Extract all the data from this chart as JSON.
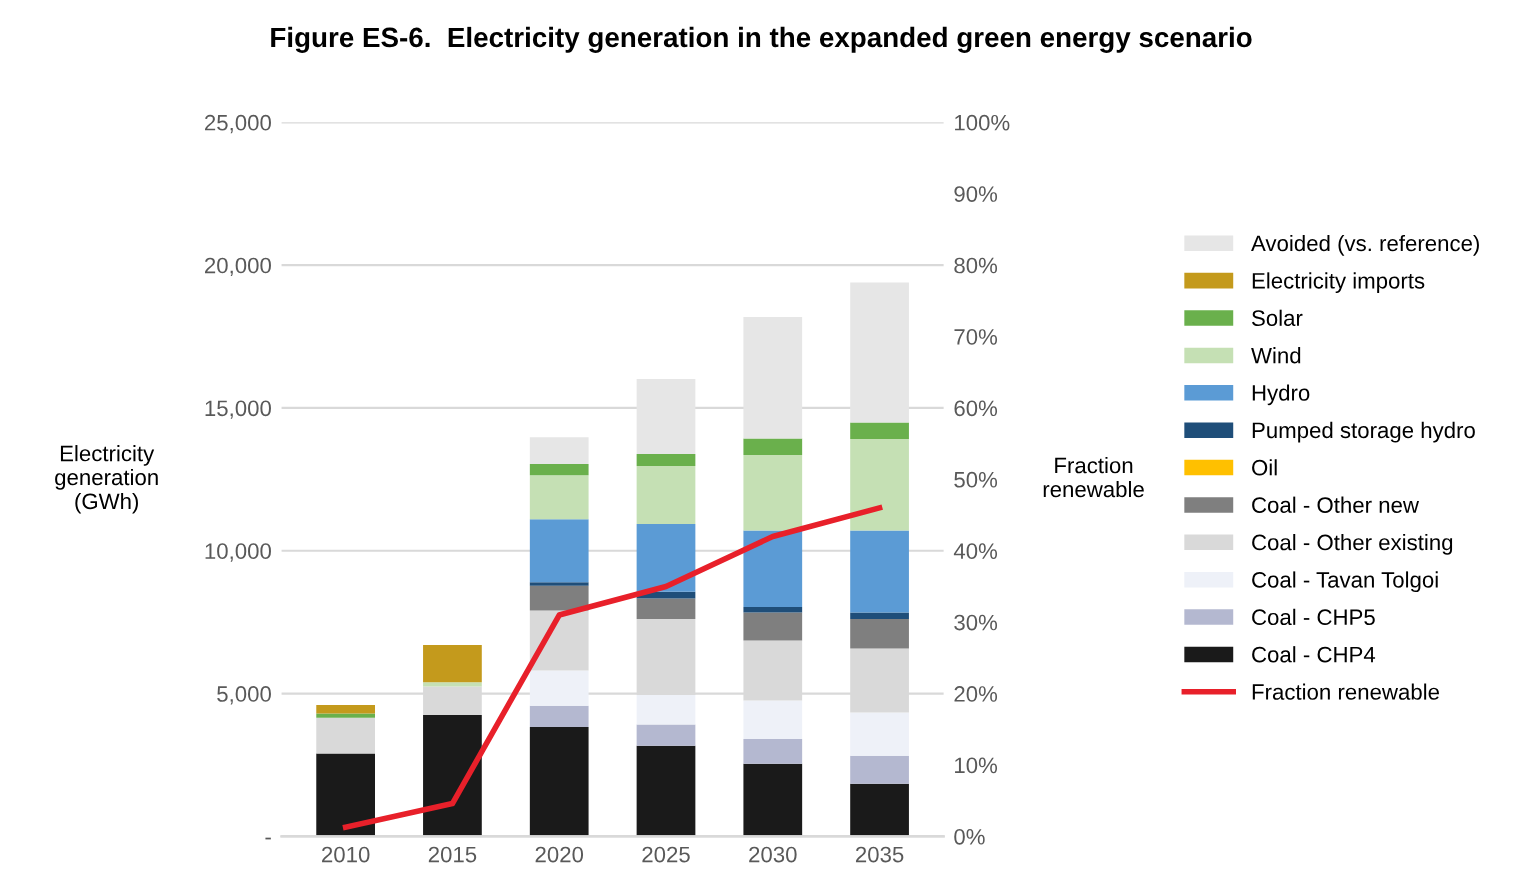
{
  "chart_data": {
    "type": "bar",
    "title": "Figure ES-6.  Electricity generation in the expanded green energy scenario",
    "xlabel": null,
    "ylabel": "Electricity\ngeneration\n(GWh)",
    "y2label": "Fraction\nrenewable",
    "categories": [
      "2010",
      "2015",
      "2020",
      "2025",
      "2030",
      "2035"
    ],
    "stacked": true,
    "series": [
      {
        "name": "Coal - CHP4",
        "color": "#1a1a1a",
        "values": [
          2900,
          4250,
          3830,
          3170,
          2540,
          1840
        ]
      },
      {
        "name": "Coal - CHP5",
        "color": "#b4b8d0",
        "values": [
          0,
          0,
          740,
          750,
          870,
          980
        ]
      },
      {
        "name": "Coal - Tavan Tolgoi",
        "color": "#eef1f8",
        "values": [
          0,
          0,
          1240,
          1030,
          1350,
          1520
        ]
      },
      {
        "name": "Coal - Other existing",
        "color": "#d9d9d9",
        "values": [
          1250,
          1000,
          2100,
          2660,
          2100,
          2240
        ]
      },
      {
        "name": "Coal - Other new",
        "color": "#7f7f7f",
        "values": [
          0,
          0,
          860,
          720,
          980,
          1030
        ]
      },
      {
        "name": "Oil",
        "color": "#ffc000",
        "values": [
          0,
          0,
          0,
          0,
          0,
          0
        ]
      },
      {
        "name": "Pumped storage hydro",
        "color": "#1f4e79",
        "values": [
          0,
          0,
          130,
          230,
          190,
          230
        ]
      },
      {
        "name": "Hydro",
        "color": "#5b9bd5",
        "values": [
          0,
          0,
          2200,
          2380,
          2680,
          2870
        ]
      },
      {
        "name": "Wind",
        "color": "#c5e0b4",
        "values": [
          0,
          150,
          1540,
          2030,
          2640,
          3200
        ]
      },
      {
        "name": "Solar",
        "color": "#6ab04c",
        "values": [
          150,
          0,
          400,
          420,
          580,
          580
        ]
      },
      {
        "name": "Electricity imports",
        "color": "#c49a1c",
        "values": [
          300,
          1300,
          0,
          0,
          0,
          0
        ]
      },
      {
        "name": "Avoided (vs. reference)",
        "color": "#e6e6e6",
        "values": [
          0,
          0,
          930,
          2620,
          4250,
          4900
        ]
      },
      {
        "name": "Fraction renewable",
        "type": "line",
        "axis": "y2",
        "color": "#e8202a",
        "values": [
          1.3,
          4.6,
          31,
          35,
          42,
          46
        ]
      }
    ],
    "ylim": [
      0,
      25000
    ],
    "yticks": [
      {
        "value": 0,
        "label": "-"
      },
      {
        "value": 5000,
        "label": "5,000"
      },
      {
        "value": 10000,
        "label": "10,000"
      },
      {
        "value": 15000,
        "label": "15,000"
      },
      {
        "value": 20000,
        "label": "20,000"
      },
      {
        "value": 25000,
        "label": "25,000"
      }
    ],
    "y2lim": [
      0,
      100
    ],
    "y2ticks": [
      {
        "value": 0,
        "label": "0%"
      },
      {
        "value": 10,
        "label": "10%"
      },
      {
        "value": 20,
        "label": "20%"
      },
      {
        "value": 30,
        "label": "30%"
      },
      {
        "value": 40,
        "label": "40%"
      },
      {
        "value": 50,
        "label": "50%"
      },
      {
        "value": 60,
        "label": "60%"
      },
      {
        "value": 70,
        "label": "70%"
      },
      {
        "value": 80,
        "label": "80%"
      },
      {
        "value": 90,
        "label": "90%"
      },
      {
        "value": 100,
        "label": "100%"
      }
    ],
    "grid": "y",
    "legend": "right"
  }
}
